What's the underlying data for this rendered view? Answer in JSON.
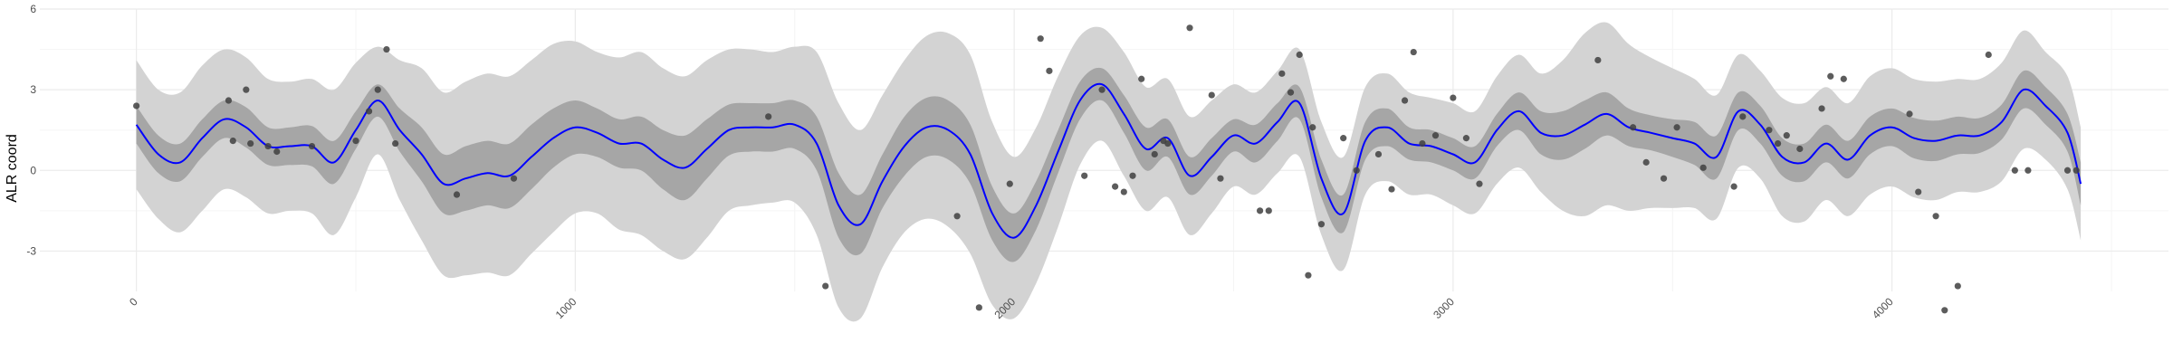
{
  "chart_data": {
    "type": "line",
    "title": "",
    "xlabel": "",
    "ylabel": "ALR coord",
    "xlim": [
      -220,
      4630
    ],
    "ylim": [
      -4.5,
      6.0
    ],
    "x_ticks": [
      0,
      1000,
      2000,
      3000,
      4000
    ],
    "x_tick_labels": [
      "0",
      "1000",
      "2000",
      "3000",
      "4000"
    ],
    "y_ticks": [
      -3,
      0,
      3,
      6
    ],
    "y_tick_labels": [
      "-3",
      "0",
      "3",
      "6"
    ],
    "grid": true,
    "legend": "none",
    "colors": {
      "mean_line": "#0000ff",
      "inner_band": "#a6a6a6",
      "outer_band": "#d3d3d3",
      "points": "#404040",
      "grid_major": "#ebebeb",
      "grid_minor": "#f5f5f5"
    },
    "series": [
      {
        "kind": "mean",
        "x": [
          0,
          50,
          100,
          150,
          200,
          250,
          300,
          350,
          400,
          450,
          500,
          550,
          600,
          650,
          700,
          750,
          800,
          850,
          900,
          950,
          1000,
          1050,
          1100,
          1150,
          1200,
          1250,
          1300,
          1350,
          1400,
          1450,
          1500,
          1550,
          1600,
          1650,
          1700,
          1750,
          1800,
          1850,
          1900,
          1950,
          2000,
          2050,
          2100,
          2150,
          2200,
          2250,
          2300,
          2350,
          2400,
          2450,
          2500,
          2550,
          2600,
          2650,
          2700,
          2750,
          2800,
          2850,
          2900,
          2950,
          3000,
          3050,
          3100,
          3150,
          3200,
          3250,
          3300,
          3350,
          3400,
          3450,
          3500,
          3550,
          3600,
          3650,
          3700,
          3750,
          3800,
          3850,
          3900,
          3950,
          4000,
          4050,
          4100,
          4150,
          4200,
          4250,
          4300,
          4350,
          4400,
          4430
        ],
        "y": [
          1.7,
          0.6,
          0.3,
          1.2,
          1.9,
          1.6,
          0.9,
          0.9,
          0.9,
          0.3,
          1.5,
          2.6,
          1.5,
          0.6,
          -0.5,
          -0.3,
          -0.1,
          -0.2,
          0.5,
          1.2,
          1.6,
          1.4,
          1.0,
          1.0,
          0.4,
          0.1,
          0.8,
          1.5,
          1.6,
          1.6,
          1.7,
          1.0,
          -1.3,
          -2.0,
          -0.4,
          0.9,
          1.6,
          1.5,
          0.6,
          -1.6,
          -2.5,
          -1.3,
          0.7,
          2.6,
          3.2,
          2.1,
          0.8,
          1.2,
          -0.2,
          0.5,
          1.3,
          1.0,
          1.8,
          2.5,
          -0.3,
          -1.6,
          1.1,
          1.6,
          1.0,
          0.9,
          0.6,
          0.3,
          1.5,
          2.2,
          1.4,
          1.3,
          1.7,
          2.1,
          1.6,
          1.4,
          1.2,
          1.0,
          0.5,
          2.2,
          1.7,
          0.5,
          0.3,
          1.0,
          0.4,
          1.3,
          1.6,
          1.2,
          1.1,
          1.3,
          1.3,
          1.8,
          3.0,
          2.4,
          1.4,
          -0.5
        ]
      },
      {
        "kind": "inner_band_halfwidth",
        "values": [
          0.7,
          0.7,
          0.7,
          0.7,
          0.7,
          0.75,
          0.7,
          0.7,
          0.75,
          0.8,
          0.7,
          0.6,
          0.8,
          1.0,
          1.1,
          1.2,
          1.2,
          1.2,
          1.2,
          1.1,
          1.0,
          0.9,
          0.9,
          1.0,
          1.1,
          1.2,
          1.1,
          0.95,
          0.9,
          0.9,
          0.9,
          1.0,
          1.2,
          1.1,
          1.0,
          1.1,
          1.1,
          1.1,
          1.1,
          1.0,
          0.9,
          0.9,
          0.8,
          0.7,
          0.6,
          0.7,
          0.8,
          0.7,
          0.7,
          0.7,
          0.6,
          0.7,
          0.7,
          0.6,
          0.7,
          0.7,
          0.7,
          0.7,
          0.6,
          0.6,
          0.6,
          0.6,
          0.6,
          0.7,
          0.8,
          0.9,
          0.9,
          0.8,
          0.7,
          0.65,
          0.7,
          0.8,
          0.8,
          0.7,
          0.7,
          0.7,
          0.7,
          0.7,
          0.7,
          0.7,
          0.7,
          0.75,
          0.75,
          0.7,
          0.65,
          0.65,
          0.7,
          0.7,
          0.7,
          0.8
        ]
      },
      {
        "kind": "outer_band_halfwidth",
        "values": [
          2.4,
          2.4,
          2.6,
          2.7,
          2.6,
          2.6,
          2.5,
          2.4,
          2.5,
          2.7,
          2.5,
          2.0,
          2.6,
          3.2,
          3.4,
          3.6,
          3.7,
          3.7,
          3.6,
          3.5,
          3.2,
          3.0,
          3.2,
          3.4,
          3.4,
          3.4,
          3.3,
          3.0,
          2.9,
          2.8,
          2.9,
          3.4,
          3.8,
          3.5,
          3.2,
          3.2,
          3.4,
          3.6,
          3.7,
          3.4,
          3.0,
          2.9,
          2.8,
          2.4,
          2.1,
          2.3,
          2.3,
          2.2,
          2.2,
          2.1,
          1.9,
          1.9,
          1.9,
          2.0,
          2.1,
          2.1,
          2.0,
          2.0,
          1.9,
          1.8,
          1.9,
          1.9,
          2.0,
          2.1,
          2.2,
          2.8,
          3.4,
          3.4,
          3.1,
          2.8,
          2.6,
          2.4,
          2.3,
          2.1,
          2.0,
          2.2,
          2.2,
          2.1,
          2.1,
          2.2,
          2.2,
          2.2,
          2.2,
          2.1,
          2.1,
          2.2,
          2.2,
          2.0,
          2.1,
          2.1
        ]
      },
      {
        "kind": "observations",
        "x": [
          0,
          210,
          220,
          250,
          260,
          300,
          320,
          400,
          500,
          530,
          550,
          570,
          590,
          730,
          860,
          1440,
          1570,
          1870,
          1920,
          1990,
          2060,
          2080,
          2160,
          2200,
          2230,
          2250,
          2270,
          2290,
          2320,
          2340,
          2350,
          2400,
          2450,
          2470,
          2560,
          2580,
          2610,
          2630,
          2650,
          2670,
          2680,
          2700,
          2750,
          2780,
          2830,
          2860,
          2890,
          2910,
          2930,
          2960,
          3000,
          3030,
          3060,
          3330,
          3410,
          3440,
          3480,
          3510,
          3570,
          3640,
          3660,
          3720,
          3740,
          3760,
          3790,
          3840,
          3860,
          3890,
          4040,
          4060,
          4100,
          4120,
          4150,
          4220,
          4280,
          4310,
          4400,
          4420
        ],
        "y": [
          2.4,
          2.6,
          1.1,
          3.0,
          1.0,
          0.9,
          0.7,
          0.9,
          1.1,
          2.2,
          3.0,
          4.5,
          1.0,
          -0.9,
          -0.3,
          2.0,
          -4.3,
          -1.7,
          -5.1,
          -0.5,
          4.9,
          3.7,
          -0.2,
          3.0,
          -0.6,
          -0.8,
          -0.2,
          3.4,
          0.6,
          1.1,
          1.0,
          5.3,
          2.8,
          -0.3,
          -1.5,
          -1.5,
          3.6,
          2.9,
          4.3,
          -3.9,
          1.6,
          -2.0,
          1.2,
          0.0,
          0.6,
          -0.7,
          2.6,
          4.4,
          1.0,
          1.3,
          2.7,
          1.2,
          -0.5,
          4.1,
          1.6,
          0.3,
          -0.3,
          1.6,
          0.1,
          -0.6,
          2.0,
          1.5,
          1.0,
          1.3,
          0.8,
          2.3,
          3.5,
          3.4,
          2.1,
          -0.8,
          -1.7,
          -5.2,
          -4.3,
          4.3,
          0.0,
          0.0,
          0.0,
          0.0
        ]
      }
    ]
  }
}
